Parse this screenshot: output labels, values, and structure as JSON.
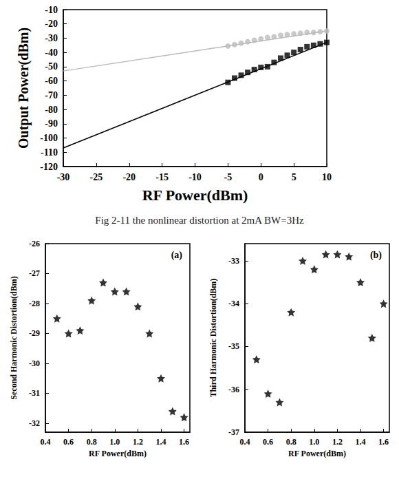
{
  "caption": "Fig 2-11 the nonlinear distortion at 2mA BW=3Hz",
  "chart_data": [
    {
      "type": "scatter",
      "x_label": "RF Power(dBm)",
      "y_label": "Output Power(dBm)",
      "xlim": [
        -30,
        10
      ],
      "xticks": [
        -30,
        -25,
        -20,
        -15,
        -10,
        -5,
        0,
        5,
        10
      ],
      "ylim": [
        -120,
        -10
      ],
      "yticks": [
        -120,
        -110,
        -100,
        -90,
        -80,
        -70,
        -60,
        -50,
        -40,
        -30,
        -20,
        -10
      ],
      "grid": false,
      "series": [
        {
          "type": "line",
          "color": "#bbbbbb",
          "line_style": "solid",
          "x": [
            -30,
            10
          ],
          "values": [
            -53,
            -25
          ]
        },
        {
          "type": "scatter",
          "color": "#bbbbbb",
          "marker": "circle",
          "x": [
            -5,
            -4,
            -3,
            -2,
            -1,
            0,
            1,
            2,
            3,
            4,
            5,
            6,
            7,
            8,
            9,
            10
          ],
          "values": [
            -35.5,
            -34.5,
            -33.5,
            -32.5,
            -31.5,
            -30.5,
            -29.5,
            -29,
            -28,
            -27.5,
            -27,
            -26.5,
            -26,
            -26,
            -25.5,
            -25
          ]
        },
        {
          "type": "line",
          "color": "#000000",
          "line_style": "solid",
          "x": [
            -30,
            10
          ],
          "values": [
            -107,
            -33
          ]
        },
        {
          "type": "scatter",
          "color": "#000000",
          "marker": "square",
          "x": [
            -5,
            -4,
            -3,
            -2,
            -1,
            0,
            1,
            2,
            3,
            4,
            5,
            6,
            7,
            8,
            9,
            10
          ],
          "values": [
            -61,
            -58,
            -56,
            -54,
            -52,
            -50.5,
            -50,
            -47,
            -44,
            -42,
            -40,
            -38,
            -36,
            -35,
            -34,
            -33
          ]
        }
      ]
    },
    {
      "type": "scatter",
      "panel": "(a)",
      "x_label": "RF Power(dBm)",
      "y_label": "Second Harmonic Distortion(dBm)",
      "xlim": [
        0.4,
        1.65
      ],
      "xticks": [
        0.4,
        0.6,
        0.8,
        {
          "value": 1,
          "label": "1.0"
        },
        1.2,
        1.4,
        1.6
      ],
      "ylim": [
        -32.3,
        -26
      ],
      "yticks": [
        -32,
        -31,
        -30,
        -29,
        -28,
        -27,
        -26
      ],
      "grid": false,
      "series": [
        {
          "type": "scatter",
          "color": "#000000",
          "marker": "star",
          "x": [
            0.5,
            0.6,
            0.7,
            0.8,
            0.9,
            1.0,
            1.1,
            1.2,
            1.3,
            1.4,
            1.5,
            1.6
          ],
          "values": [
            -28.5,
            -29,
            -28.9,
            -27.9,
            -27.3,
            -27.6,
            -27.6,
            -28.1,
            -29,
            -30.5,
            -31.6,
            -31.8
          ]
        }
      ]
    },
    {
      "type": "scatter",
      "panel": "(b)",
      "x_label": "RF Power(dBm)",
      "y_label": "Third Harmonic Distortion(dBm)",
      "xlim": [
        0.4,
        1.65
      ],
      "xticks": [
        0.4,
        0.6,
        0.8,
        {
          "value": 1,
          "label": "1.0"
        },
        1.2,
        1.4,
        1.6
      ],
      "ylim": [
        -37,
        -32.6
      ],
      "yticks": [
        -37,
        -36,
        -35,
        -34,
        -33
      ],
      "grid": false,
      "series": [
        {
          "type": "scatter",
          "color": "#000000",
          "marker": "star",
          "x": [
            0.5,
            0.6,
            0.7,
            0.8,
            0.9,
            1.0,
            1.1,
            1.2,
            1.3,
            1.4,
            1.5,
            1.6
          ],
          "values": [
            -35.3,
            -36.1,
            -36.3,
            -34.2,
            -33,
            -33.2,
            -32.85,
            -32.85,
            -32.9,
            -33.5,
            -34.8,
            -34
          ]
        }
      ]
    }
  ]
}
